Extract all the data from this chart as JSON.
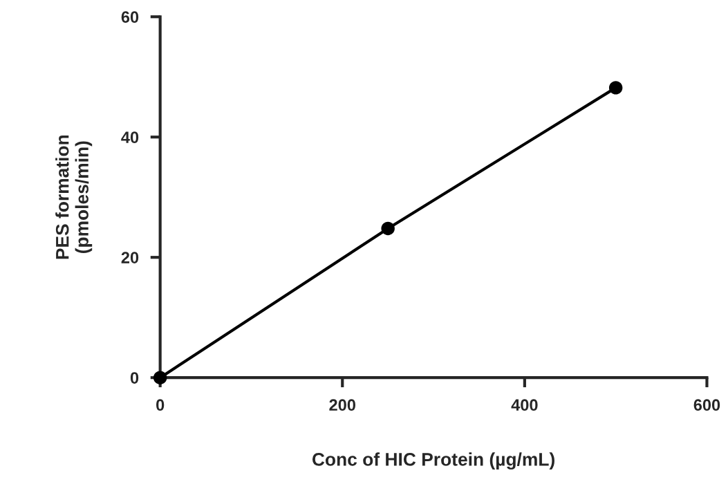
{
  "chart_data": {
    "type": "line",
    "xlabel": "Conc of HIC Protein (µg/mL)",
    "ylabel": "PES formation\n(pmoles/min)",
    "x": [
      0,
      250,
      500
    ],
    "series": [
      {
        "color": "#000000",
        "values": [
          0,
          24.8,
          48.2
        ]
      }
    ],
    "xlim": [
      0,
      600
    ],
    "xticks": [
      0,
      200,
      400,
      600
    ],
    "ylim": [
      0,
      60
    ],
    "yticks": [
      0,
      20,
      40,
      60
    ],
    "grid": false,
    "marker": "circle",
    "line_style": "solid"
  }
}
